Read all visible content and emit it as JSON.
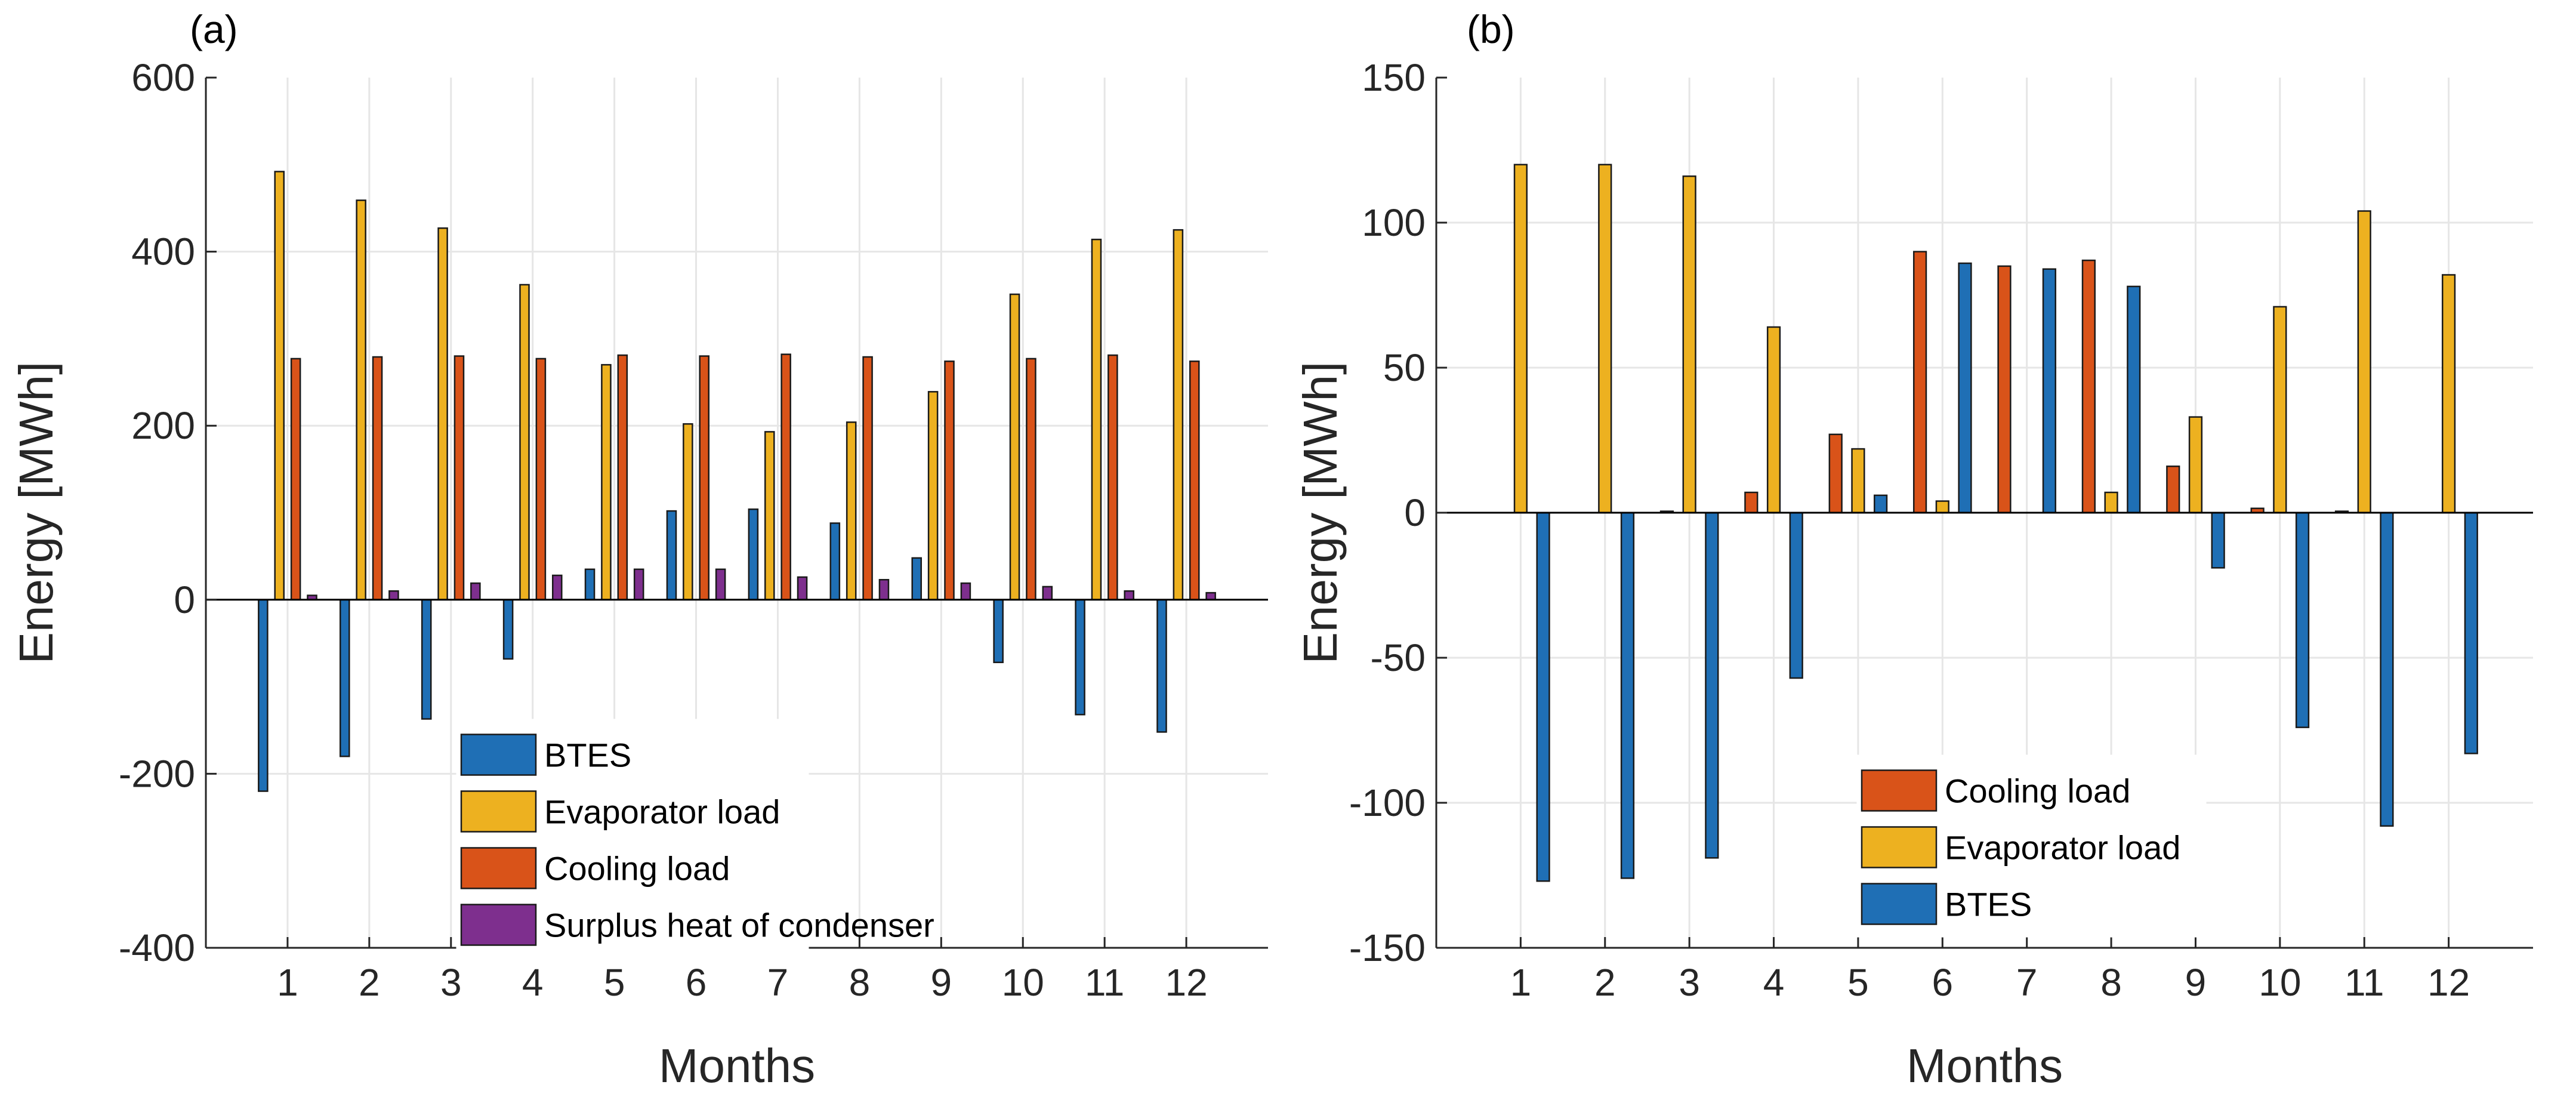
{
  "colors": {
    "BTES": "#1f6fb5",
    "Evaporator load": "#edb120",
    "Cooling load": "#d95319",
    "Surplus heat of condenser": "#7e2f8e"
  },
  "chart_data": [
    {
      "type": "bar",
      "panel_label": "(a)",
      "xlabel": "Months",
      "ylabel": "Energy [MWh]",
      "ylim": [
        -400,
        600
      ],
      "yticks": [
        -400,
        -200,
        0,
        200,
        400,
        600
      ],
      "grid": true,
      "legend_position": "bottom-center",
      "categories": [
        "1",
        "2",
        "3",
        "4",
        "5",
        "6",
        "7",
        "8",
        "9",
        "10",
        "11",
        "12"
      ],
      "series": [
        {
          "name": "BTES",
          "values": [
            -220,
            -180,
            -137,
            -68,
            35,
            102,
            104,
            88,
            48,
            -72,
            -132,
            -152
          ]
        },
        {
          "name": "Evaporator load",
          "values": [
            492,
            459,
            427,
            362,
            270,
            202,
            193,
            204,
            239,
            351,
            414,
            425
          ]
        },
        {
          "name": "Cooling load",
          "values": [
            277,
            279,
            280,
            277,
            281,
            280,
            282,
            279,
            274,
            277,
            281,
            274
          ]
        },
        {
          "name": "Surplus heat of condenser",
          "values": [
            5,
            10,
            19,
            28,
            35,
            35,
            26,
            23,
            19,
            15,
            10,
            8
          ]
        }
      ],
      "legend": [
        "BTES",
        "Evaporator load",
        "Cooling load",
        "Surplus heat of condenser"
      ]
    },
    {
      "type": "bar",
      "panel_label": "(b)",
      "xlabel": "Months",
      "ylabel": "Energy [MWh]",
      "ylim": [
        -150,
        150
      ],
      "yticks": [
        -150,
        -100,
        -50,
        0,
        50,
        100,
        150
      ],
      "grid": true,
      "legend_position": "bottom-center",
      "categories": [
        "1",
        "2",
        "3",
        "4",
        "5",
        "6",
        "7",
        "8",
        "9",
        "10",
        "11",
        "12"
      ],
      "series": [
        {
          "name": "Cooling load",
          "values": [
            0,
            0,
            0.5,
            7,
            27,
            90,
            85,
            87,
            16,
            1.5,
            0.5,
            0
          ]
        },
        {
          "name": "Evaporator load",
          "values": [
            120,
            120,
            116,
            64,
            22,
            4,
            0,
            7,
            33,
            71,
            104,
            82
          ]
        },
        {
          "name": "BTES",
          "values": [
            -127,
            -126,
            -119,
            -57,
            6,
            86,
            84,
            78,
            -19,
            -74,
            -108,
            -83
          ]
        }
      ],
      "legend": [
        "Cooling load",
        "Evaporator load",
        "BTES"
      ]
    }
  ]
}
